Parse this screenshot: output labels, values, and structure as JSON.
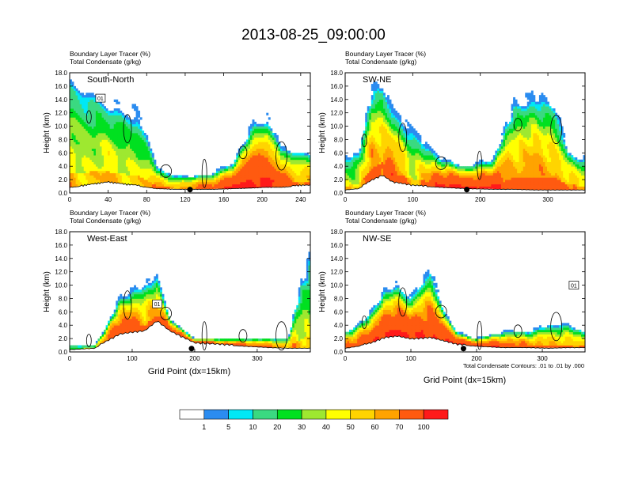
{
  "figure": {
    "title": "2013-08-25_09:00:00",
    "xlabel": "Grid Point (dx=15km)",
    "contour_note": "Total Condensate Contours: .01 to .01 by .000"
  },
  "colors": [
    "#ffffff",
    "#2b8cf0",
    "#00e8f5",
    "#3ad981",
    "#00e020",
    "#9ee830",
    "#ffff00",
    "#ffd400",
    "#ffa300",
    "#ff5a10",
    "#ff1a1a"
  ],
  "colorbar": {
    "labels": [
      "1",
      "5",
      "10",
      "20",
      "30",
      "40",
      "50",
      "60",
      "70",
      "100"
    ]
  },
  "chart_data": [
    {
      "type": "heatmap",
      "name": "South-North",
      "label_line1": "Boundary Layer Tracer   (%)",
      "label_line2": "Total Condensate   (g/kg)",
      "xlim": [
        0,
        250
      ],
      "ylim": [
        0,
        18
      ],
      "xticks": [
        "0",
        "40",
        "80",
        "120",
        "160",
        "200",
        "240"
      ],
      "yticks": [
        "0.0",
        "2.0",
        "4.0",
        "6.0",
        "8.0",
        "10.0",
        "12.0",
        "14.0",
        "16.0",
        "18.0"
      ],
      "ylabel": "Height (km)",
      "marker_x": 125,
      "box_label": "01",
      "box_at": [
        32,
        14.2
      ],
      "plume_axis_x": [
        0,
        10,
        25,
        40,
        55,
        70,
        90,
        110,
        130,
        150,
        170,
        190,
        205,
        220,
        240,
        250
      ],
      "plume_top_km": [
        16.5,
        15.5,
        14.5,
        13,
        12.5,
        12,
        4,
        2.5,
        2.5,
        3,
        4.5,
        10,
        11,
        6.5,
        6,
        6
      ],
      "plume_level_pct": [
        50,
        40,
        40,
        50,
        40,
        40,
        60,
        60,
        70,
        80,
        90,
        90,
        90,
        80,
        60,
        60
      ],
      "terrain_km": [
        0.8,
        0.9,
        1.2,
        1.5,
        1.2,
        1.0,
        0.6,
        0.5,
        0.5,
        0.5,
        0.6,
        0.7,
        0.8,
        0.8,
        1.0,
        1.0
      ]
    },
    {
      "type": "heatmap",
      "name": "SW-NE",
      "label_line1": "Boundary Layer Tracer   (%)",
      "label_line2": "Total Condensate   (g/kg)",
      "xlim": [
        0,
        355
      ],
      "ylim": [
        0,
        18
      ],
      "xticks": [
        "0",
        "100",
        "200",
        "300"
      ],
      "yticks": [
        "0.0",
        "2.0",
        "4.0",
        "6.0",
        "8.0",
        "10.0",
        "12.0",
        "14.0",
        "16.0",
        "18.0"
      ],
      "ylabel": "Height (km)",
      "marker_x": 180,
      "box_label": "",
      "box_at": [
        0,
        0
      ],
      "plume_axis_x": [
        0,
        20,
        40,
        55,
        70,
        100,
        140,
        180,
        220,
        250,
        280,
        310,
        330,
        355
      ],
      "plume_top_km": [
        5,
        6,
        15,
        16,
        12,
        9,
        5,
        4,
        5,
        13,
        14,
        13,
        6,
        5
      ],
      "plume_level_pct": [
        40,
        40,
        70,
        60,
        80,
        40,
        90,
        90,
        90,
        60,
        70,
        60,
        60,
        50
      ],
      "terrain_km": [
        0.4,
        0.6,
        1.8,
        2.5,
        1.5,
        1.0,
        0.8,
        0.6,
        0.5,
        0.5,
        0.4,
        0.4,
        0.4,
        0.4
      ]
    },
    {
      "type": "heatmap",
      "name": "West-East",
      "label_line1": "Boundary Layer Tracer   (%)",
      "label_line2": "Total Condensate   (g/kg)",
      "xlim": [
        0,
        385
      ],
      "ylim": [
        0,
        18
      ],
      "xticks": [
        "0",
        "100",
        "200",
        "300"
      ],
      "yticks": [
        "0.0",
        "2.0",
        "4.0",
        "6.0",
        "8.0",
        "10.0",
        "12.0",
        "14.0",
        "16.0",
        "18.0"
      ],
      "ylabel": "Height (km)",
      "marker_x": 195,
      "box_label": "01",
      "box_at": [
        140,
        7.2
      ],
      "plume_axis_x": [
        0,
        40,
        60,
        80,
        100,
        120,
        140,
        160,
        200,
        240,
        280,
        320,
        350,
        370,
        385
      ],
      "plume_top_km": [
        1,
        1,
        4,
        8,
        9,
        10,
        11,
        5,
        2,
        2,
        2,
        2,
        2,
        10,
        14
      ],
      "plume_level_pct": [
        20,
        40,
        80,
        80,
        80,
        60,
        70,
        80,
        90,
        80,
        80,
        70,
        60,
        40,
        40
      ],
      "terrain_km": [
        0.3,
        0.5,
        1.5,
        2.5,
        2.8,
        3.0,
        4.5,
        3.0,
        1.2,
        1.0,
        0.8,
        0.6,
        0.5,
        0.5,
        0.5
      ]
    },
    {
      "type": "heatmap",
      "name": "NW-SE",
      "label_line1": "Boundary Layer Tracer   (%)",
      "label_line2": "Total Condensate   (g/kg)",
      "xlim": [
        0,
        365
      ],
      "ylim": [
        0,
        18
      ],
      "xticks": [
        "0",
        "100",
        "200",
        "300"
      ],
      "yticks": [
        "0.0",
        "2.0",
        "4.0",
        "6.0",
        "8.0",
        "10.0",
        "12.0",
        "14.0",
        "16.0",
        "18.0"
      ],
      "ylabel": "Height (km)",
      "marker_x": 180,
      "box_label": "01",
      "box_at": [
        348,
        10
      ],
      "plume_axis_x": [
        0,
        20,
        40,
        60,
        80,
        100,
        130,
        150,
        170,
        200,
        240,
        280,
        310,
        340,
        365
      ],
      "plume_top_km": [
        3,
        4,
        6,
        9,
        10,
        8,
        12,
        6,
        3,
        2,
        3,
        3,
        4,
        4,
        3
      ],
      "plume_level_pct": [
        70,
        80,
        80,
        90,
        90,
        90,
        80,
        90,
        90,
        90,
        80,
        70,
        60,
        60,
        50
      ],
      "terrain_km": [
        0.5,
        0.8,
        1.2,
        2.0,
        2.2,
        1.8,
        2.0,
        1.5,
        1.0,
        0.8,
        0.6,
        0.6,
        0.5,
        0.6,
        0.6
      ]
    }
  ]
}
